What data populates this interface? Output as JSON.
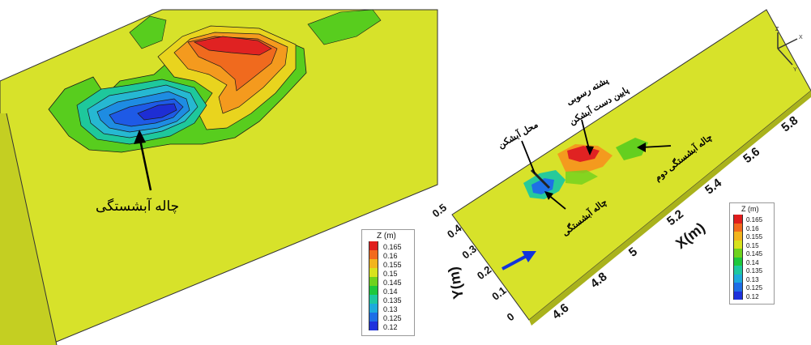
{
  "charts": {
    "left": {
      "annotation": "چاله آبشستگی"
    },
    "right": {
      "axis_labels": {
        "x": "X(m)",
        "y": "Y(m)"
      },
      "annotations": {
        "pier_location": "محل آبشکن",
        "sediment_ridge_line1": "پشته رسوبی",
        "sediment_ridge_line2": "پایین دست آبشکن",
        "second_scour_hole": "چاله آبشستگی دوم",
        "scour_hole": "چاله آبشستگی"
      },
      "axis_triad": {
        "x": "X",
        "y": "Y",
        "z": "Z"
      }
    }
  },
  "legend": {
    "title": "Z (m)",
    "levels": [
      "0.165",
      "0.16",
      "0.155",
      "0.15",
      "0.145",
      "0.14",
      "0.135",
      "0.13",
      "0.125",
      "0.12"
    ],
    "colors": [
      "#e01e1e",
      "#f26a1e",
      "#f2b41e",
      "#d8e21e",
      "#6fd21e",
      "#1ec83c",
      "#1ec8a0",
      "#1eaadc",
      "#1e6ee6",
      "#1e32dc"
    ]
  },
  "chart_data": [
    {
      "type": "heatmap",
      "title": "",
      "description_in_image": "zoomed contour of bed elevation",
      "colorbar": {
        "label": "Z (m)",
        "levels": [
          0.165,
          0.16,
          0.155,
          0.15,
          0.145,
          0.14,
          0.135,
          0.13,
          0.125,
          0.12
        ]
      },
      "background_level": 0.15,
      "features": [
        {
          "label": "چاله آبشستگی",
          "min_z": 0.12
        },
        {
          "label": "",
          "max_z": 0.165
        }
      ]
    },
    {
      "type": "heatmap",
      "title": "",
      "xlabel": "X(m)",
      "ylabel": "Y(m)",
      "x_ticks": [
        4.6,
        4.8,
        5,
        5.2,
        5.4,
        5.6,
        5.8
      ],
      "y_ticks": [
        0,
        0.1,
        0.2,
        0.3,
        0.4,
        0.5
      ],
      "xlim": [
        4.5,
        5.85
      ],
      "ylim": [
        0,
        0.5
      ],
      "colorbar": {
        "label": "Z (m)",
        "levels": [
          0.165,
          0.16,
          0.155,
          0.15,
          0.145,
          0.14,
          0.135,
          0.13,
          0.125,
          0.12
        ]
      },
      "background_level": 0.15,
      "annotations": [
        "محل آبشکن",
        "پشته رسوبی",
        "پایین دست آبشکن",
        "چاله آبشستگی دوم",
        "چاله آبشستگی"
      ]
    }
  ]
}
